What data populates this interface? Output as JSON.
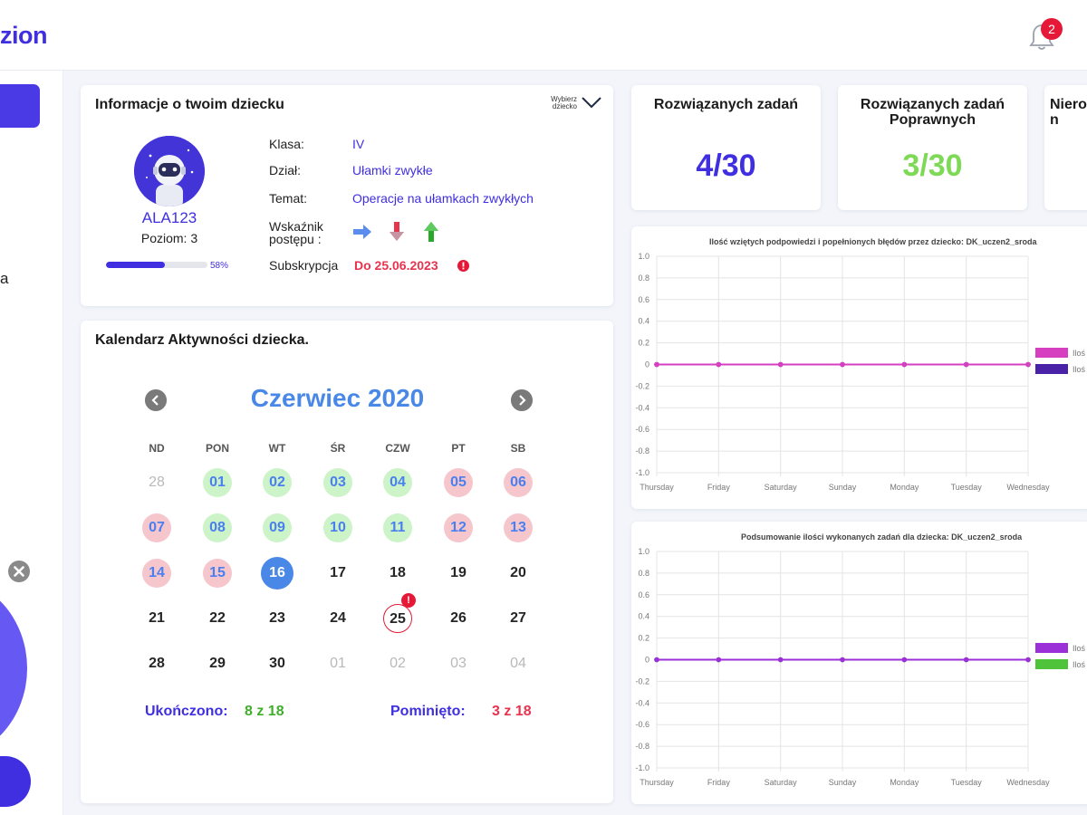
{
  "header": {
    "logo_text": "zion",
    "notifications_count": "2"
  },
  "sidebar": {
    "partial_text": "a"
  },
  "info_card": {
    "title": "Informacje o twoim dziecku",
    "choose_line1": "Wybierz",
    "choose_line2": "dziecko",
    "nickname": "ALA123",
    "level": "Poziom: 3",
    "progress_percent_label": "58%",
    "progress_fraction": 0.58,
    "rows": {
      "klasa_label": "Klasa:",
      "klasa_value": "IV",
      "dzial_label": "Dział:",
      "dzial_value": "Ułamki zwykłe",
      "temat_label": "Temat:",
      "temat_value": "Operacje na ułamkach zwykłych",
      "wskaznik_label_1": "Wskaźnik",
      "wskaznik_label_2": "postępu :",
      "subskrypcja_label": "Subskrypcja",
      "subskrypcja_value": "Do 25.06.2023"
    },
    "progress_icons": [
      "arrow-right-icon",
      "arrow-down-icon",
      "arrow-up-icon"
    ],
    "colors": {
      "arrow_right": "#5b8def",
      "arrow_down": "#e5364b",
      "arrow_up": "#2aa82a"
    }
  },
  "calendar": {
    "title": "Kalendarz Aktywności dziecka.",
    "month_label": "Czerwiec 2020",
    "weekdays": [
      "ND",
      "PON",
      "WT",
      "ŚR",
      "CZW",
      "PT",
      "SB"
    ],
    "weeks": [
      [
        {
          "d": "28",
          "s": "other"
        },
        {
          "d": "01",
          "s": "green"
        },
        {
          "d": "02",
          "s": "green"
        },
        {
          "d": "03",
          "s": "green"
        },
        {
          "d": "04",
          "s": "green"
        },
        {
          "d": "05",
          "s": "red"
        },
        {
          "d": "06",
          "s": "red"
        }
      ],
      [
        {
          "d": "07",
          "s": "red"
        },
        {
          "d": "08",
          "s": "green"
        },
        {
          "d": "09",
          "s": "green"
        },
        {
          "d": "10",
          "s": "green"
        },
        {
          "d": "11",
          "s": "green"
        },
        {
          "d": "12",
          "s": "red"
        },
        {
          "d": "13",
          "s": "red"
        }
      ],
      [
        {
          "d": "14",
          "s": "red"
        },
        {
          "d": "15",
          "s": "red"
        },
        {
          "d": "16",
          "s": "today"
        },
        {
          "d": "17",
          "s": "plain"
        },
        {
          "d": "18",
          "s": "plain"
        },
        {
          "d": "19",
          "s": "plain"
        },
        {
          "d": "20",
          "s": "plain"
        }
      ],
      [
        {
          "d": "21",
          "s": "plain"
        },
        {
          "d": "22",
          "s": "plain"
        },
        {
          "d": "23",
          "s": "plain"
        },
        {
          "d": "24",
          "s": "plain"
        },
        {
          "d": "25",
          "s": "alert"
        },
        {
          "d": "26",
          "s": "plain"
        },
        {
          "d": "27",
          "s": "plain"
        }
      ],
      [
        {
          "d": "28",
          "s": "plain"
        },
        {
          "d": "29",
          "s": "plain"
        },
        {
          "d": "30",
          "s": "plain"
        },
        {
          "d": "01",
          "s": "other"
        },
        {
          "d": "02",
          "s": "other"
        },
        {
          "d": "03",
          "s": "other"
        },
        {
          "d": "04",
          "s": "other"
        }
      ]
    ],
    "alert_mark": "!",
    "completed_label": "Ukończono:",
    "completed_value": "8 z 18",
    "skipped_label": "Pominięto:",
    "skipped_value": "3 z 18"
  },
  "stats": [
    {
      "title": "Rozwiązanych zadań",
      "value": "4/30",
      "color": "#3f2fe0"
    },
    {
      "title": "Rozwiązanych zadań Poprawnych",
      "value": "3/30",
      "color": "#7ed957"
    },
    {
      "title": "Nieroz n",
      "value": "",
      "color": "#1b1b1b"
    }
  ],
  "chart_data": [
    {
      "type": "line",
      "title": "Ilość wziętych podpowiedzi i popełnionych błędów przez dziecko: DK_uczen2_sroda",
      "categories": [
        "Thursday",
        "Friday",
        "Saturday",
        "Sunday",
        "Monday",
        "Tuesday",
        "Wednesday"
      ],
      "y_ticks": [
        "1.0",
        "0.8",
        "0.6",
        "0.4",
        "0.2",
        "0",
        "-0.2",
        "-0.4",
        "-0.6",
        "-0.8",
        "-1.0"
      ],
      "ylim": [
        -1.0,
        1.0
      ],
      "grid": true,
      "legend": "right",
      "series": [
        {
          "name": "Iloś",
          "values": [
            0,
            0,
            0,
            0,
            0,
            0,
            0
          ],
          "color": "#d63fc0"
        },
        {
          "name": "Iloś",
          "values": [
            0,
            0,
            0,
            0,
            0,
            0,
            0
          ],
          "color": "#4a22a8"
        }
      ]
    },
    {
      "type": "line",
      "title": "Podsumowanie ilości wykonanych zadań dla dziecka: DK_uczen2_sroda",
      "categories": [
        "Thursday",
        "Friday",
        "Saturday",
        "Sunday",
        "Monday",
        "Tuesday",
        "Wednesday"
      ],
      "y_ticks": [
        "1.0",
        "0.8",
        "0.6",
        "0.4",
        "0.2",
        "0",
        "-0.2",
        "-0.4",
        "-0.6",
        "-0.8",
        "-1.0"
      ],
      "ylim": [
        -1.0,
        1.0
      ],
      "grid": true,
      "legend": "right",
      "series": [
        {
          "name": "Iloś",
          "values": [
            0,
            0,
            0,
            0,
            0,
            0,
            0
          ],
          "color": "#9b2fd8"
        },
        {
          "name": "Iloś",
          "values": [
            0,
            0,
            0,
            0,
            0,
            0,
            0
          ],
          "color": "#4fc43a"
        }
      ]
    }
  ]
}
